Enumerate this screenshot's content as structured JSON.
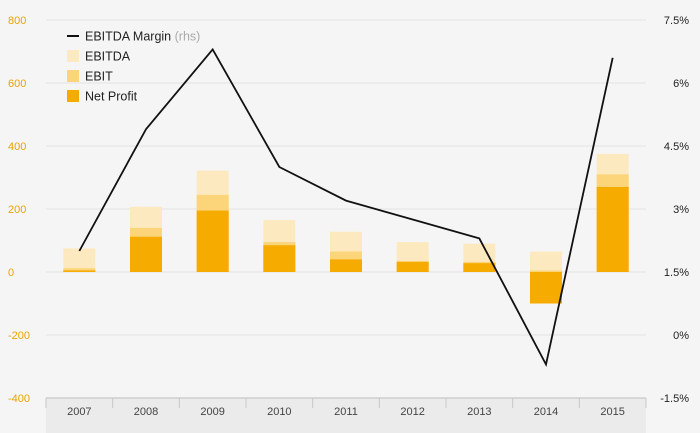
{
  "chart_data": {
    "type": "bar",
    "categories": [
      "2007",
      "2008",
      "2009",
      "2010",
      "2011",
      "2012",
      "2013",
      "2014",
      "2015"
    ],
    "series": [
      {
        "name": "EBITDA",
        "kind": "bar",
        "axis": "left",
        "values": [
          75,
          207,
          322,
          165,
          128,
          95,
          90,
          65,
          375
        ],
        "color": "#fde9c0"
      },
      {
        "name": "EBIT",
        "kind": "bar",
        "axis": "left",
        "values": [
          12,
          140,
          245,
          95,
          65,
          35,
          32,
          5,
          310
        ],
        "color": "#fcd57a"
      },
      {
        "name": "Net Profit",
        "kind": "bar",
        "axis": "left",
        "values": [
          5,
          112,
          195,
          85,
          40,
          32,
          28,
          -100,
          270
        ],
        "color": "#f5ab00"
      },
      {
        "name": "EBITDA Margin",
        "kind": "line",
        "axis": "right",
        "values": [
          2.0,
          4.9,
          6.8,
          4.0,
          3.2,
          2.75,
          2.3,
          -0.7,
          6.6
        ],
        "color": "#111111"
      }
    ],
    "legend": {
      "items": [
        {
          "label": "EBITDA Margin",
          "note": "(rhs)",
          "symbol": "line",
          "color": "#111111"
        },
        {
          "label": "EBITDA",
          "symbol": "box",
          "color": "#fde9c0"
        },
        {
          "label": "EBIT",
          "symbol": "box",
          "color": "#fcd57a"
        },
        {
          "label": "Net Profit",
          "symbol": "box",
          "color": "#f5ab00"
        }
      ],
      "position": "top-left"
    },
    "y_left": {
      "ticks": [
        "800",
        "600",
        "400",
        "200",
        "0",
        "-200",
        "-400"
      ],
      "ylim": [
        -400,
        800
      ]
    },
    "y_right": {
      "ticks": [
        "7.5%",
        "6%",
        "4.5%",
        "3%",
        "1.5%",
        "0%",
        "-1.5%"
      ],
      "ylim": [
        -1.5,
        7.5
      ]
    },
    "grid": "horizontal",
    "title": "",
    "xlabel": "",
    "ylabel": ""
  }
}
